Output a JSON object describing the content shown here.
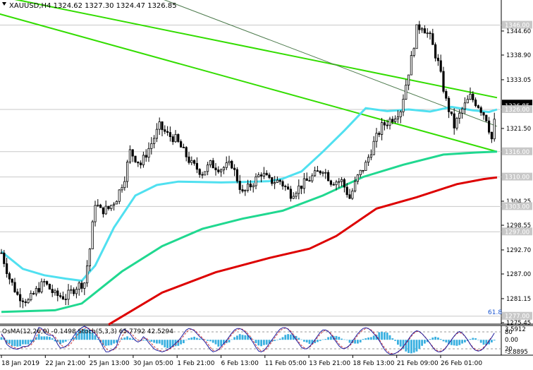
{
  "chart_data": [
    {
      "type": "candlestick",
      "title": "XAUUSD,H4  1324.62 1327.30 1324.47 1326.85",
      "ylim": [
        1275.45,
        1351.45
      ],
      "grid": false,
      "price_ticks": [
        {
          "value": 1344.6,
          "label": "1344.60"
        },
        {
          "value": 1338.9,
          "label": "1338.90"
        },
        {
          "value": 1333.05,
          "label": "1333.05"
        },
        {
          "value": 1321.5,
          "label": "1321.50"
        },
        {
          "value": 1304.25,
          "label": "1304.25"
        },
        {
          "value": 1298.55,
          "label": "1298.55"
        },
        {
          "value": 1292.7,
          "label": "1292.70"
        },
        {
          "value": 1287.0,
          "label": "1287.00"
        },
        {
          "value": 1281.15,
          "label": "1281.15"
        },
        {
          "value": 1275.45,
          "label": "1275.45"
        }
      ],
      "level_tags": [
        {
          "value": 1346.0,
          "label": "1346.00",
          "color": "#c8c8c8"
        },
        {
          "value": 1327.3,
          "label": "1327.30",
          "color": "#000000"
        },
        {
          "value": 1326.85,
          "label": "1326.85",
          "color": "#000000"
        },
        {
          "value": 1326.0,
          "label": "1326.00",
          "color": "#c8c8c8"
        },
        {
          "value": 1316.0,
          "label": "1316.00",
          "color": "#c8c8c8"
        },
        {
          "value": 1310.0,
          "label": "1310.00",
          "color": "#c8c8c8"
        },
        {
          "value": 1303.0,
          "label": "1303.00",
          "color": "#c8c8c8"
        },
        {
          "value": 1297.0,
          "label": "1297.00",
          "color": "#c8c8c8"
        },
        {
          "value": 1277.0,
          "label": "1277.00",
          "color": "#c8c8c8"
        }
      ],
      "fib_label": "61.8",
      "x_labels": [
        "18 Jan 2019",
        "22 Jan 21:00",
        "25 Jan 13:00",
        "30 Jan 05:00",
        "1 Feb 21:00",
        "6 Feb 13:00",
        "11 Feb 05:00",
        "13 Feb 21:00",
        "18 Feb 13:00",
        "21 Feb 09:00",
        "26 Feb 01:00"
      ],
      "channel_lines": [
        {
          "name": "upper",
          "color": "#33dd00",
          "from": [
            -5,
            1353.4
          ],
          "to": [
            185,
            1328.8
          ]
        },
        {
          "name": "lower",
          "color": "#33dd00",
          "from": [
            -5,
            1349.4
          ],
          "to": [
            185,
            1316.0
          ]
        },
        {
          "name": "mid",
          "color": "#4c7a4c",
          "from": [
            55,
            1353.4
          ],
          "to": [
            185,
            1322.0
          ]
        }
      ],
      "ma_lines": [
        {
          "name": "ma_fast",
          "color": "#50e0f0",
          "points": [
            [
              0,
              1292.3
            ],
            [
              8,
              1288.2
            ],
            [
              16,
              1286.7
            ],
            [
              24,
              1285.9
            ],
            [
              30,
              1285.4
            ],
            [
              35,
              1289.0
            ],
            [
              42,
              1298.0
            ],
            [
              50,
              1305.6
            ],
            [
              58,
              1308.1
            ],
            [
              66,
              1308.9
            ],
            [
              74,
              1308.8
            ],
            [
              82,
              1308.7
            ],
            [
              90,
              1308.8
            ],
            [
              100,
              1309.0
            ],
            [
              105,
              1309.6
            ],
            [
              112,
              1311.3
            ],
            [
              120,
              1316.0
            ],
            [
              128,
              1321.0
            ],
            [
              136,
              1326.3
            ],
            [
              144,
              1325.6
            ],
            [
              152,
              1326.0
            ],
            [
              160,
              1325.5
            ],
            [
              168,
              1326.6
            ],
            [
              176,
              1325.8
            ],
            [
              182,
              1325.4
            ],
            [
              185,
              1326.0
            ]
          ]
        },
        {
          "name": "ma_mid",
          "color": "#20d890",
          "points": [
            [
              0,
              1278.0
            ],
            [
              20,
              1278.4
            ],
            [
              30,
              1280.0
            ],
            [
              45,
              1287.6
            ],
            [
              60,
              1293.6
            ],
            [
              75,
              1297.7
            ],
            [
              90,
              1300.1
            ],
            [
              105,
              1302.0
            ],
            [
              120,
              1305.6
            ],
            [
              135,
              1310.0
            ],
            [
              150,
              1312.9
            ],
            [
              165,
              1315.3
            ],
            [
              177,
              1315.8
            ],
            [
              185,
              1316.0
            ]
          ]
        },
        {
          "name": "ma_slow",
          "color": "#dd0000",
          "points": [
            [
              40,
              1275.0
            ],
            [
              60,
              1282.6
            ],
            [
              80,
              1287.4
            ],
            [
              100,
              1290.8
            ],
            [
              115,
              1293.0
            ],
            [
              125,
              1296.0
            ],
            [
              140,
              1302.5
            ],
            [
              155,
              1305.2
            ],
            [
              170,
              1308.3
            ],
            [
              180,
              1309.5
            ],
            [
              185,
              1309.9
            ]
          ]
        }
      ],
      "x_count": 185
    },
    {
      "type": "bar",
      "title": "OsMA(12,26,9) -0.1498  Stoch(5,3,3) 65.7792 42.5294",
      "ylim": [
        -3.8895,
        3.5912
      ],
      "tick_labels": [
        "3.5912",
        "0.00",
        "-3.8895"
      ],
      "stoch_levels": [
        "80",
        "20"
      ],
      "histogram": [
        0.7,
        0.5,
        -1.0,
        -1.0,
        -1.6,
        -1.7,
        -1.8,
        -1.7,
        -1.2,
        -1.2,
        -1.2,
        -0.6,
        -0.5,
        0.7,
        1.5,
        0.9,
        0.9,
        0.9,
        0.8,
        0.4,
        -0.4,
        -0.6,
        -1.2,
        -0.8,
        -0.5,
        -0.1,
        0.2,
        0.6,
        1.8,
        2.4,
        2.6,
        2.9,
        2.7,
        2.6,
        1.9,
        1.2,
        0.2,
        -0.7,
        -1.5,
        -1.6,
        -1.5,
        -1.4,
        -1.0,
        -0.8,
        0.1,
        0.3,
        0.6,
        0.9,
        0.5,
        0.3,
        0.1,
        -0.1,
        -0.1,
        -0.2,
        -0.2,
        -0.2,
        -0.5,
        -0.8,
        -1.0,
        -1.0,
        -1.4,
        -2.0,
        -2.2,
        -2.1,
        -1.9,
        -1.7,
        -1.6,
        -1.2,
        -0.9,
        -0.1,
        0.4,
        0.6,
        0.8,
        0.5,
        0.3,
        0.2,
        0.1,
        -0.3,
        -0.4,
        -0.8,
        -1.2,
        -1.8,
        -1.6,
        -1.1,
        -0.9,
        -0.7,
        0.1,
        0.7,
        1.1,
        1.5,
        1.3,
        1.2,
        1.2,
        0.7,
        0.1,
        -0.9,
        -1.5,
        -1.7,
        -1.4,
        -1.3,
        -1.0,
        -0.5,
        -0.3,
        -0.1,
        0.3,
        0.7,
        1.3,
        1.5,
        1.4,
        1.3,
        1.0,
        0.5,
        0.1,
        -0.5,
        -0.7,
        -1.1,
        -1.1,
        -0.9,
        -0.6,
        -0.3,
        0.1,
        0.2,
        0.7,
        0.9,
        1.0,
        1.0,
        0.8,
        0.3,
        0.1,
        -0.1,
        -0.8,
        -0.9,
        -1.0,
        -1.0,
        -0.7,
        0.2,
        0.4,
        0.6,
        0.7,
        1.1,
        1.3,
        2.0,
        2.1,
        2.0,
        1.9,
        1.2,
        0.4,
        -0.3,
        -1.3,
        -1.8,
        -2.4,
        -3.1,
        -3.5,
        -3.6,
        -3.4,
        -3.1,
        -2.4,
        -1.6,
        -1.0,
        -0.6,
        0.2,
        0.6,
        0.8,
        0.6,
        0.2,
        -0.4,
        -0.7,
        -1.2,
        -1.4,
        -1.5,
        -1.6,
        -1.4,
        -1.0,
        -0.7,
        -0.3,
        0.2,
        0.5,
        0.4,
        0.0,
        -0.8,
        -1.3,
        -1.4,
        -1.2,
        -0.7,
        -0.2
      ],
      "stoch_main": [
        1.6,
        0.4,
        -1.2,
        -1.8,
        -2.2,
        -2.4,
        -2.5,
        -2.2,
        -1.8,
        -1.8,
        -1.6,
        -1.0,
        0.2,
        1.9,
        3.3,
        3.0,
        2.0,
        1.4,
        1.2,
        1.2,
        0.3,
        -1.2,
        -2.2,
        -2.1,
        -1.7,
        -1.2,
        -0.2,
        1.0,
        2.0,
        2.6,
        3.2,
        3.6,
        3.2,
        2.6,
        2.2,
        1.6,
        0.6,
        -0.6,
        -2.0,
        -3.2,
        -3.2,
        -2.8,
        -2.4,
        -1.6,
        0.8,
        2.4,
        2.8,
        2.2,
        1.6,
        0.6,
        -0.2,
        -0.6,
        -0.2,
        0.8,
        0.2,
        -0.8,
        -1.6,
        -2.4,
        -2.8,
        -3.0,
        -3.2,
        -3.0,
        -2.6,
        -2.2,
        -1.6,
        -0.9,
        -0.3,
        0.6,
        1.6,
        2.6,
        3.0,
        2.8,
        2.4,
        1.6,
        0.8,
        0.2,
        -0.6,
        -1.6,
        -2.6,
        -3.2,
        -3.0,
        -2.6,
        -1.8,
        -1.0,
        -0.2,
        0.8,
        1.8,
        2.6,
        3.0,
        3.0,
        2.6,
        2.0,
        1.2,
        0.3,
        -0.8,
        -2.0,
        -3.0,
        -3.2,
        -2.8,
        -2.0,
        -1.0,
        0.0,
        1.0,
        2.0,
        2.8,
        3.2,
        3.2,
        2.8,
        2.0,
        1.0,
        0.0,
        -1.0,
        -2.0,
        -2.4,
        -2.4,
        -1.8,
        -1.0,
        0.0,
        1.0,
        2.0,
        2.6,
        2.6,
        2.2,
        1.4,
        0.4,
        -0.6,
        -1.6,
        -2.2,
        -2.4,
        -2.0,
        -1.4,
        -0.4,
        0.6,
        1.6,
        2.4,
        3.0,
        3.2,
        3.0,
        2.4,
        1.6,
        0.8,
        -0.2,
        -1.4,
        -2.6,
        -3.4,
        -3.8,
        -3.8,
        -3.6,
        -3.2,
        -2.6,
        -1.8,
        -0.8,
        0.2,
        1.2,
        2.0,
        2.4,
        2.2,
        1.6,
        0.8,
        0.0,
        -1.0,
        -2.0,
        -2.8,
        -3.2,
        -3.2,
        -2.8,
        -2.0,
        -1.0,
        0.0,
        1.0,
        1.8,
        2.2,
        1.8,
        1.0,
        0.0,
        -1.2,
        -2.2,
        -2.8,
        -3.0,
        -2.8,
        -2.2,
        -1.4,
        -0.4,
        0.6,
        1.8
      ],
      "stoch_signal": [
        1.2,
        0.6,
        -0.6,
        -1.2,
        -1.8,
        -2.1,
        -2.3,
        -2.3,
        -2.0,
        -1.9,
        -1.7,
        -1.4,
        -0.6,
        0.8,
        2.2,
        2.8,
        2.6,
        2.0,
        1.6,
        1.3,
        0.8,
        -0.2,
        -1.2,
        -1.8,
        -1.9,
        -1.6,
        -1.0,
        0.0,
        1.0,
        1.8,
        2.6,
        3.1,
        3.2,
        2.9,
        2.4,
        1.9,
        1.1,
        0.0,
        -1.2,
        -2.3,
        -2.8,
        -2.9,
        -2.6,
        -2.0,
        -0.8,
        0.8,
        2.0,
        2.4,
        2.0,
        1.3,
        0.5,
        -0.1,
        -0.3,
        0.3,
        0.5,
        -0.2,
        -1.0,
        -1.8,
        -2.4,
        -2.8,
        -3.0,
        -3.0,
        -2.8,
        -2.4,
        -1.9,
        -1.3,
        -0.6,
        0.2,
        1.0,
        2.0,
        2.6,
        2.8,
        2.6,
        2.0,
        1.2,
        0.5,
        -0.2,
        -1.0,
        -2.0,
        -2.8,
        -3.0,
        -2.8,
        -2.2,
        -1.5,
        -0.6,
        0.4,
        1.4,
        2.2,
        2.7,
        2.9,
        2.8,
        2.3,
        1.6,
        0.8,
        -0.3,
        -1.4,
        -2.4,
        -3.0,
        -3.0,
        -2.4,
        -1.5,
        -0.5,
        0.5,
        1.5,
        2.4,
        2.9,
        3.1,
        2.9,
        2.3,
        1.4,
        0.4,
        -0.6,
        -1.5,
        -2.1,
        -2.3,
        -2.0,
        -1.3,
        -0.4,
        0.6,
        1.5,
        2.2,
        2.5,
        2.3,
        1.7,
        0.8,
        -0.2,
        -1.1,
        -1.8,
        -2.2,
        -2.1,
        -1.6,
        -0.8,
        0.2,
        1.2,
        2.0,
        2.6,
        3.0,
        3.0,
        2.6,
        2.0,
        1.1,
        0.1,
        -1.0,
        -2.1,
        -3.0,
        -3.5,
        -3.7,
        -3.6,
        -3.3,
        -2.8,
        -2.0,
        -1.1,
        -0.1,
        0.9,
        1.7,
        2.2,
        2.1,
        1.6,
        0.9,
        0.0,
        -0.9,
        -1.8,
        -2.6,
        -3.0,
        -3.0,
        -2.6,
        -1.9,
        -1.0,
        0.0,
        0.9,
        1.6,
        1.9,
        1.6,
        0.9,
        -0.1,
        -1.1,
        -2.0,
        -2.6,
        -2.8,
        -2.6,
        -2.0,
        -1.2,
        -0.2,
        0.8
      ],
      "x_count": 185
    }
  ],
  "colors": {
    "bull": "#000000",
    "bear": "#000000",
    "osma_bar": "#3ab0e0",
    "stoch_main": "#2020a0",
    "stoch_signal": "#d04040",
    "axis": "#000000"
  },
  "candles_anchor": [
    [
      0,
      1292.0
    ],
    [
      3,
      1286.0
    ],
    [
      6,
      1282.0
    ],
    [
      10,
      1280.5
    ],
    [
      13,
      1283.0
    ],
    [
      16,
      1285.0
    ],
    [
      20,
      1282.0
    ],
    [
      24,
      1281.5
    ],
    [
      28,
      1284.0
    ],
    [
      31,
      1285.0
    ],
    [
      33,
      1293.0
    ],
    [
      35,
      1304.0
    ],
    [
      37,
      1302.0
    ],
    [
      40,
      1302.5
    ],
    [
      43,
      1305.0
    ],
    [
      46,
      1310.0
    ],
    [
      48,
      1316.0
    ],
    [
      52,
      1313.0
    ],
    [
      56,
      1318.0
    ],
    [
      59,
      1322.0
    ],
    [
      62,
      1320.0
    ],
    [
      65,
      1319.0
    ],
    [
      68,
      1316.0
    ],
    [
      71,
      1313.0
    ],
    [
      75,
      1311.0
    ],
    [
      78,
      1313.0
    ],
    [
      82,
      1312.0
    ],
    [
      86,
      1313.0
    ],
    [
      90,
      1306.0
    ],
    [
      93,
      1308.0
    ],
    [
      97,
      1311.0
    ],
    [
      100,
      1309.0
    ],
    [
      104,
      1309.0
    ],
    [
      108,
      1306.0
    ],
    [
      112,
      1308.0
    ],
    [
      116,
      1310.0
    ],
    [
      120,
      1312.0
    ],
    [
      123,
      1309.0
    ],
    [
      127,
      1309.0
    ],
    [
      130,
      1305.0
    ],
    [
      133,
      1310.0
    ],
    [
      136,
      1313.0
    ],
    [
      139,
      1318.0
    ],
    [
      142,
      1322.0
    ],
    [
      146,
      1324.0
    ],
    [
      149,
      1326.0
    ],
    [
      151,
      1332.0
    ],
    [
      153,
      1338.0
    ],
    [
      155,
      1345.0
    ],
    [
      157,
      1346.0
    ],
    [
      160,
      1343.0
    ],
    [
      163,
      1337.0
    ],
    [
      166,
      1328.0
    ],
    [
      169,
      1322.0
    ],
    [
      172,
      1326.0
    ],
    [
      175,
      1329.0
    ],
    [
      178,
      1327.0
    ],
    [
      181,
      1324.0
    ],
    [
      183,
      1319.0
    ],
    [
      185,
      1326.9
    ]
  ]
}
